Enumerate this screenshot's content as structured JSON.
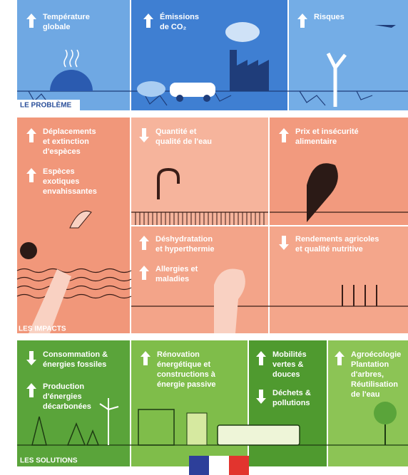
{
  "problem": {
    "label": "LE PROBLÈME",
    "panels": [
      {
        "title": [
          "Température",
          "globale"
        ]
      },
      {
        "title": [
          "Émissions",
          "de CO₂"
        ]
      },
      {
        "title": [
          "Risques"
        ]
      }
    ]
  },
  "impacts": {
    "label": "LES IMPACTS",
    "panels": [
      {
        "items": [
          [
            "Déplacements",
            "et extinction",
            "d'espèces"
          ],
          [
            "Espèces",
            "exotiques",
            "envahissantes"
          ]
        ]
      },
      {
        "items": [
          [
            "Quantité et",
            "qualité de l'eau"
          ]
        ]
      },
      {
        "items": [
          [
            "Prix et insécurité",
            "alimentaire"
          ]
        ]
      },
      {
        "items": [
          [
            "Déshydratation",
            "et hyperthermie"
          ],
          [
            "Allergies et",
            "maladies"
          ]
        ]
      },
      {
        "items": [
          [
            "Rendements agricoles",
            "et qualité nutritive"
          ]
        ]
      }
    ]
  },
  "solutions": {
    "label": "LES SOLUTIONS",
    "panels": [
      {
        "items": [
          [
            "Consommation &",
            "énergies fossiles"
          ],
          [
            "Production",
            "d'énergies",
            "décarbonées"
          ]
        ]
      },
      {
        "items": [
          [
            "Rénovation",
            "énergétique et",
            "constructions à",
            "énergie passive"
          ]
        ]
      },
      {
        "items": [
          [
            "Mobilités",
            "vertes &",
            "douces"
          ],
          [
            "Déchets &",
            "pollutions"
          ]
        ]
      },
      {
        "items": [
          [
            "Agroécologie",
            "Plantation",
            "d'arbres,",
            "Réutilisation",
            "de l'eau"
          ]
        ]
      }
    ]
  }
}
